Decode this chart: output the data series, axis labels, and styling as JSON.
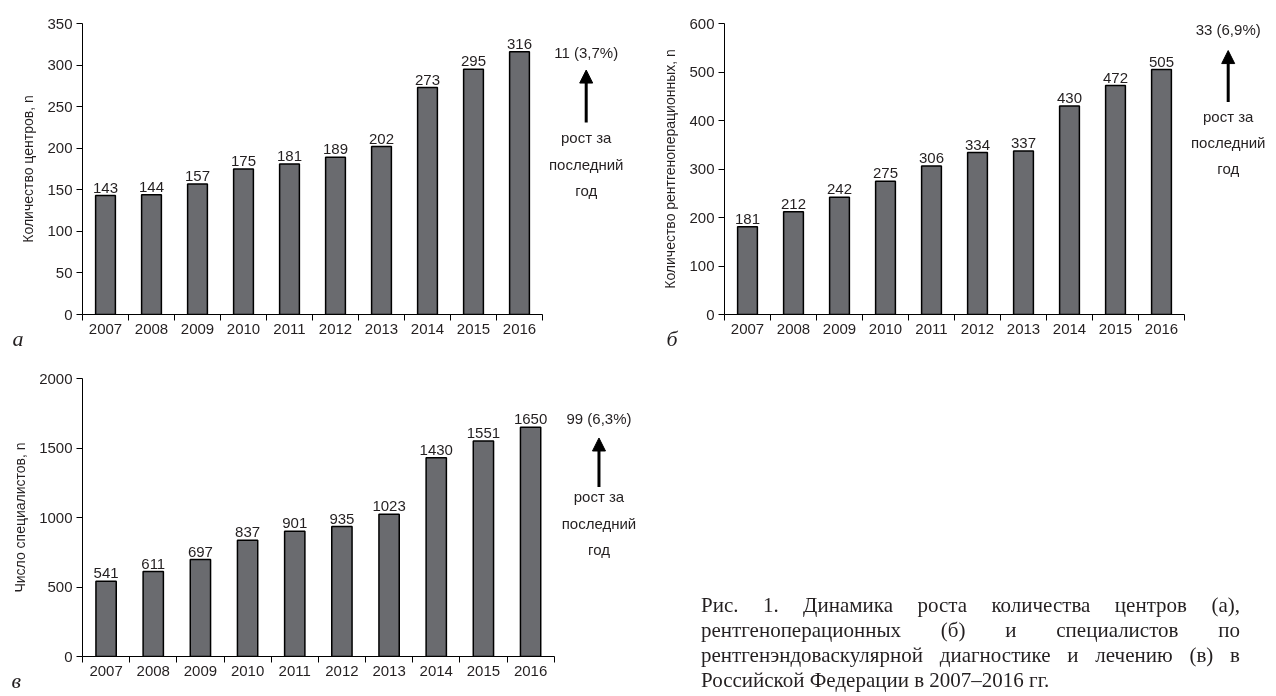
{
  "chart_data": [
    {
      "type": "bar",
      "categories": [
        "2007",
        "2008",
        "2009",
        "2010",
        "2011",
        "2012",
        "2013",
        "2014",
        "2015",
        "2016"
      ],
      "values": [
        143,
        144,
        157,
        175,
        181,
        189,
        202,
        273,
        295,
        316
      ],
      "color": "#6a6b6f",
      "ylim": [
        0,
        350
      ],
      "yticks": [
        0,
        50,
        100,
        150,
        200,
        250,
        300,
        350
      ],
      "ylabel": "Количество центров, n",
      "data_labels": true,
      "annotations": [
        "а",
        "11 (3,7%)",
        "рост за\nпоследний\nгод"
      ]
    },
    {
      "type": "bar",
      "categories": [
        "2007",
        "2008",
        "2009",
        "2010",
        "2011",
        "2012",
        "2013",
        "2014",
        "2015",
        "2016"
      ],
      "values": [
        181,
        212,
        242,
        275,
        306,
        334,
        337,
        430,
        472,
        505
      ],
      "color": "#6a6b6f",
      "ylim": [
        0,
        600
      ],
      "yticks": [
        0,
        100,
        200,
        300,
        400,
        500,
        600
      ],
      "ylabel": "Количество рентгеноперационных, n",
      "data_labels": true,
      "annotations": [
        "б",
        "33 (6,9%)",
        "рост за\nпоследний\nгод"
      ]
    },
    {
      "type": "bar",
      "categories": [
        "2007",
        "2008",
        "2009",
        "2010",
        "2011",
        "2012",
        "2013",
        "2014",
        "2015",
        "2016"
      ],
      "values": [
        541,
        611,
        697,
        837,
        901,
        935,
        1023,
        1430,
        1551,
        1650
      ],
      "color": "#6a6b6f",
      "ylim": [
        0,
        2000
      ],
      "yticks": [
        0,
        500,
        1000,
        1500,
        2000
      ],
      "ylabel": "Число специалистов, n",
      "data_labels": true,
      "annotations": [
        "в",
        "99 (6,3%)",
        "рост за\nпоследний\nгод",
        "Рис. 1. Динамика роста количества центров (а), рентгеноперационных (б) и специалистов по рентгенэндоваскулярной диагностике и лечению (в) в Российской Федерации в 2007–2016 гг."
      ]
    }
  ]
}
